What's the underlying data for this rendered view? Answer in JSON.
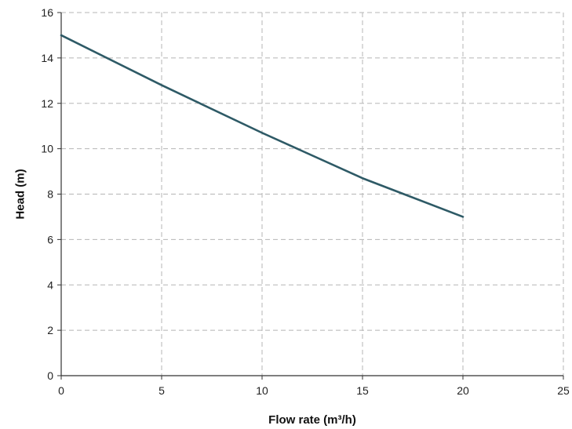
{
  "chart_data": {
    "type": "line",
    "title": "",
    "xlabel": "Flow rate (m³/h)",
    "ylabel": "Head (m)",
    "xlim": [
      0,
      25
    ],
    "ylim": [
      0,
      16
    ],
    "xticks": [
      0,
      5,
      10,
      15,
      20,
      25
    ],
    "yticks": [
      0,
      2,
      4,
      6,
      8,
      10,
      12,
      14,
      16
    ],
    "grid": true,
    "series": [
      {
        "color": "#2e5a66",
        "x": [
          0,
          5,
          10,
          15,
          20
        ],
        "y": [
          15.0,
          12.8,
          10.7,
          8.7,
          7.0
        ]
      }
    ]
  }
}
